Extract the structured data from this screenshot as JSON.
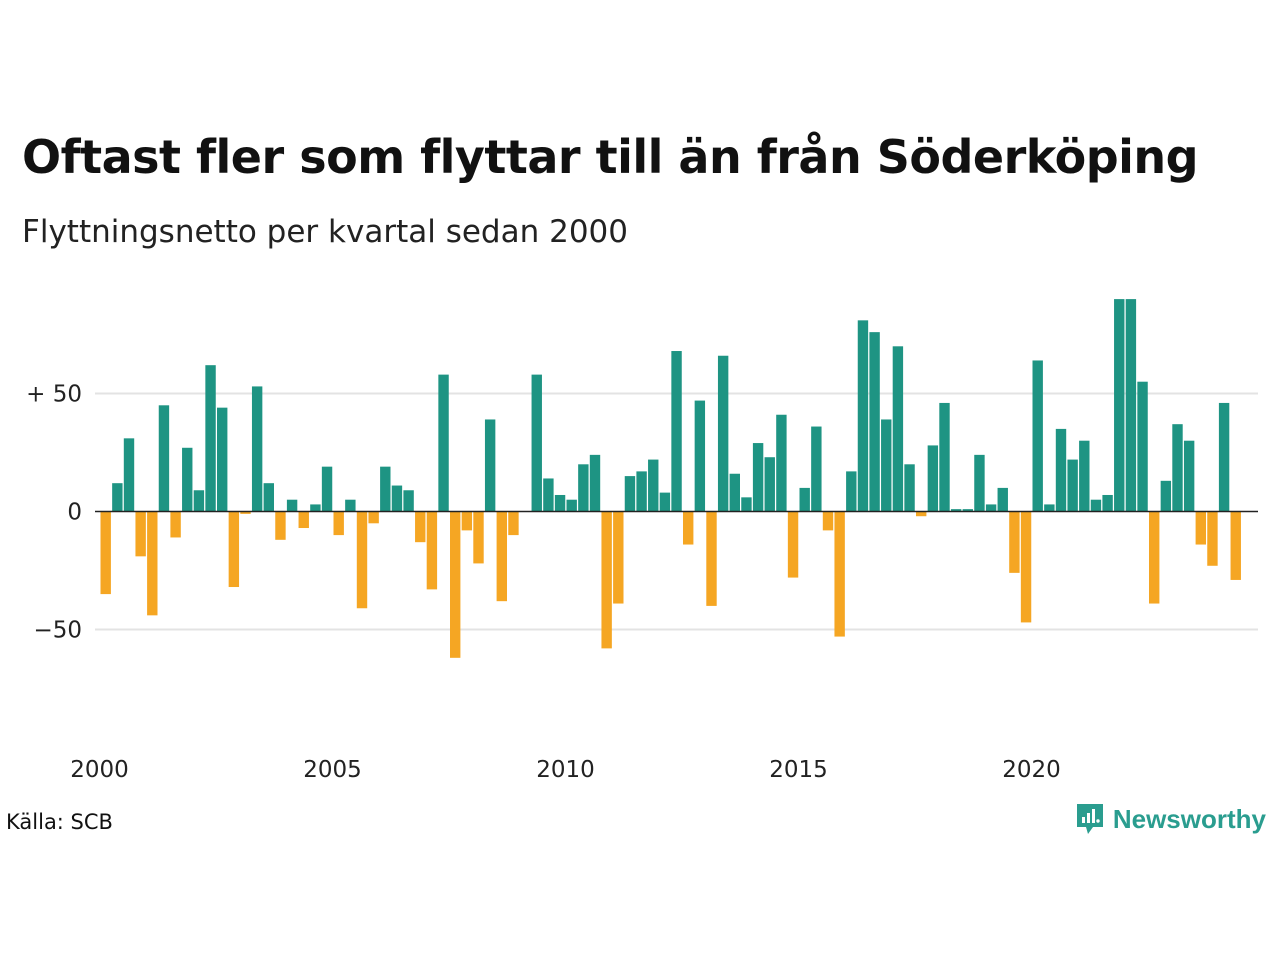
{
  "title": "Oftast fler som flyttar till än från Söderköping",
  "subtitle": "Flyttningsnetto per kvartal sedan 2000",
  "source": "Källa: SCB",
  "brand": "Newsworthy",
  "colors": {
    "positive": "#1e9483",
    "negative": "#f5a623",
    "brand": "#2a9d8f",
    "grid": "#e3e3e3",
    "zero": "#222222"
  },
  "chart_data": {
    "type": "bar",
    "title": "Oftast fler som flyttar till än från Söderköping",
    "subtitle": "Flyttningsnetto per kvartal sedan 2000",
    "xlabel": "",
    "ylabel": "",
    "x_tick_labels": [
      "2000",
      "2005",
      "2010",
      "2015",
      "2020"
    ],
    "y_ticks": [
      {
        "value": 50,
        "label": "+ 50"
      },
      {
        "value": 0,
        "label": "0"
      },
      {
        "value": -50,
        "label": "−50"
      }
    ],
    "ylim": [
      -80,
      95
    ],
    "grid": true,
    "series": [
      {
        "name": "",
        "start": "2000 Q1",
        "frequency": "quarterly",
        "values": [
          -35,
          12,
          31,
          -19,
          -44,
          45,
          -11,
          27,
          9,
          62,
          44,
          -32,
          -1,
          53,
          12,
          -12,
          5,
          -7,
          3,
          19,
          -10,
          5,
          -41,
          -5,
          19,
          11,
          9,
          -13,
          -33,
          58,
          -62,
          -8,
          -22,
          39,
          -38,
          -10,
          0,
          58,
          14,
          7,
          5,
          20,
          24,
          -58,
          -39,
          15,
          17,
          22,
          8,
          68,
          -14,
          47,
          -40,
          66,
          16,
          6,
          29,
          23,
          41,
          -28,
          10,
          36,
          -8,
          -53,
          17,
          81,
          76,
          39,
          70,
          20,
          -2,
          28,
          46,
          1,
          1,
          24,
          3,
          10,
          -26,
          -47,
          64,
          3,
          35,
          22,
          30,
          5,
          7,
          90,
          90,
          55,
          -39,
          13,
          37,
          30,
          -14,
          -23,
          46,
          -29
        ]
      }
    ]
  }
}
